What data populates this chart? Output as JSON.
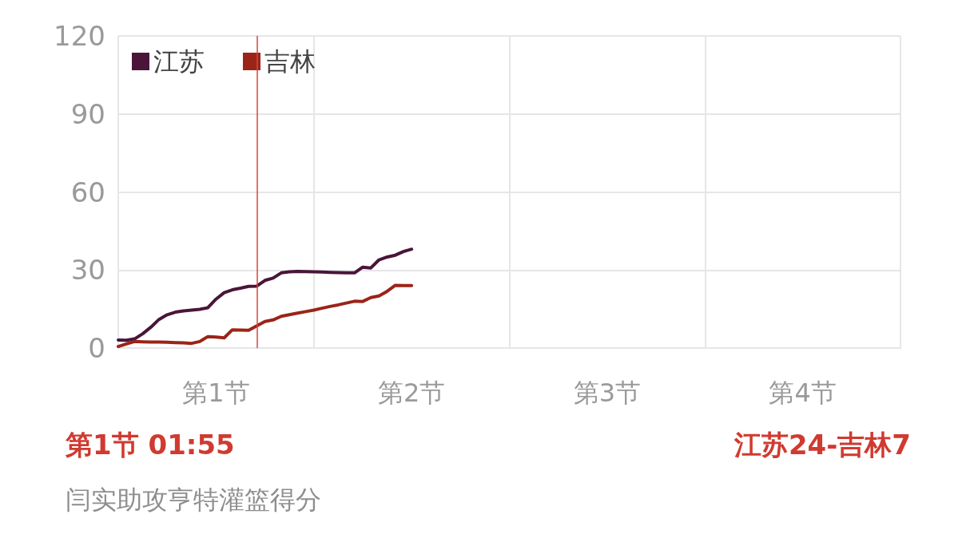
{
  "chart_data": {
    "type": "line",
    "categories": [
      null,
      null,
      null,
      null,
      null,
      null,
      null,
      null,
      null,
      null,
      null,
      null,
      "第1节",
      null,
      null,
      null,
      null,
      null,
      null,
      null,
      null,
      null,
      null,
      null,
      null,
      null,
      null,
      null,
      null,
      null,
      null,
      null,
      null,
      null,
      null,
      null,
      "第2节",
      null,
      null,
      null,
      null,
      null,
      null,
      null,
      null,
      null,
      null,
      null,
      null,
      null,
      null,
      null,
      null,
      null,
      null,
      null,
      null,
      null,
      null,
      null,
      "第3节",
      null,
      null,
      null,
      null,
      null,
      null,
      null,
      null,
      null,
      null,
      null,
      null,
      null,
      null,
      null,
      null,
      null,
      null,
      null,
      null,
      null,
      null,
      null,
      "第4节",
      null,
      null,
      null,
      null,
      null,
      null,
      null,
      null,
      null,
      null,
      null,
      null
    ],
    "ylim": [
      0,
      120
    ],
    "yticks": [
      0,
      30,
      60,
      90,
      120
    ],
    "grid": true,
    "legend": "top left",
    "marker": "none",
    "line_style": "solid",
    "series": [
      {
        "name": "江苏",
        "color": "#4a1538",
        "values": [
          3.1,
          3.0,
          3.5,
          5.5,
          8,
          11,
          12.8,
          13.8,
          14.3,
          14.6,
          14.9,
          15.5,
          18.8,
          21.3,
          22.4,
          23.0,
          23.7,
          23.8,
          26.0,
          26.9,
          28.9,
          29.3,
          29.5,
          29.4,
          29.3,
          29.2,
          29.1,
          29.0,
          28.9,
          28.9,
          31.1,
          30.8,
          33.9,
          35.0,
          35.7,
          37.1,
          38.0,
          null,
          null,
          null,
          null,
          null,
          null,
          null,
          null,
          null,
          null,
          null,
          null,
          null,
          null,
          null,
          null,
          null,
          null,
          null,
          null,
          null,
          null,
          null,
          null,
          null,
          null,
          null,
          null,
          null,
          null,
          null,
          null,
          null,
          null,
          null,
          null,
          null,
          null,
          null,
          null,
          null,
          null,
          null,
          null,
          null,
          null,
          null,
          null,
          null,
          null,
          null,
          null,
          null,
          null,
          null,
          null,
          null,
          null,
          null,
          null
        ]
      },
      {
        "name": "吉林",
        "color": "#9b2418",
        "values": [
          0.6,
          1.6,
          2.5,
          2.4,
          2.3,
          2.3,
          2.2,
          2.1,
          2.0,
          1.8,
          2.5,
          4.4,
          4.2,
          3.9,
          7.0,
          6.9,
          6.8,
          8.5,
          10.2,
          10.8,
          12.2,
          12.8,
          13.4,
          14.0,
          14.6,
          15.3,
          16.0,
          16.6,
          17.3,
          18.0,
          17.9,
          19.4,
          20.0,
          21.8,
          24.1,
          24.0,
          24.0,
          null,
          null,
          null,
          null,
          null,
          null,
          null,
          null,
          null,
          null,
          null,
          null,
          null,
          null,
          null,
          null,
          null,
          null,
          null,
          null,
          null,
          null,
          null,
          null,
          null,
          null,
          null,
          null,
          null,
          null,
          null,
          null,
          null,
          null,
          null,
          null,
          null,
          null,
          null,
          null,
          null,
          null,
          null,
          null,
          null,
          null,
          null,
          null,
          null,
          null,
          null,
          null,
          null,
          null,
          null,
          null,
          null,
          null,
          null,
          null
        ]
      }
    ],
    "annotations": [
      "第1节 01:55",
      "江苏24-吉林7",
      "闫实助攻亨特灌篮得分"
    ]
  }
}
